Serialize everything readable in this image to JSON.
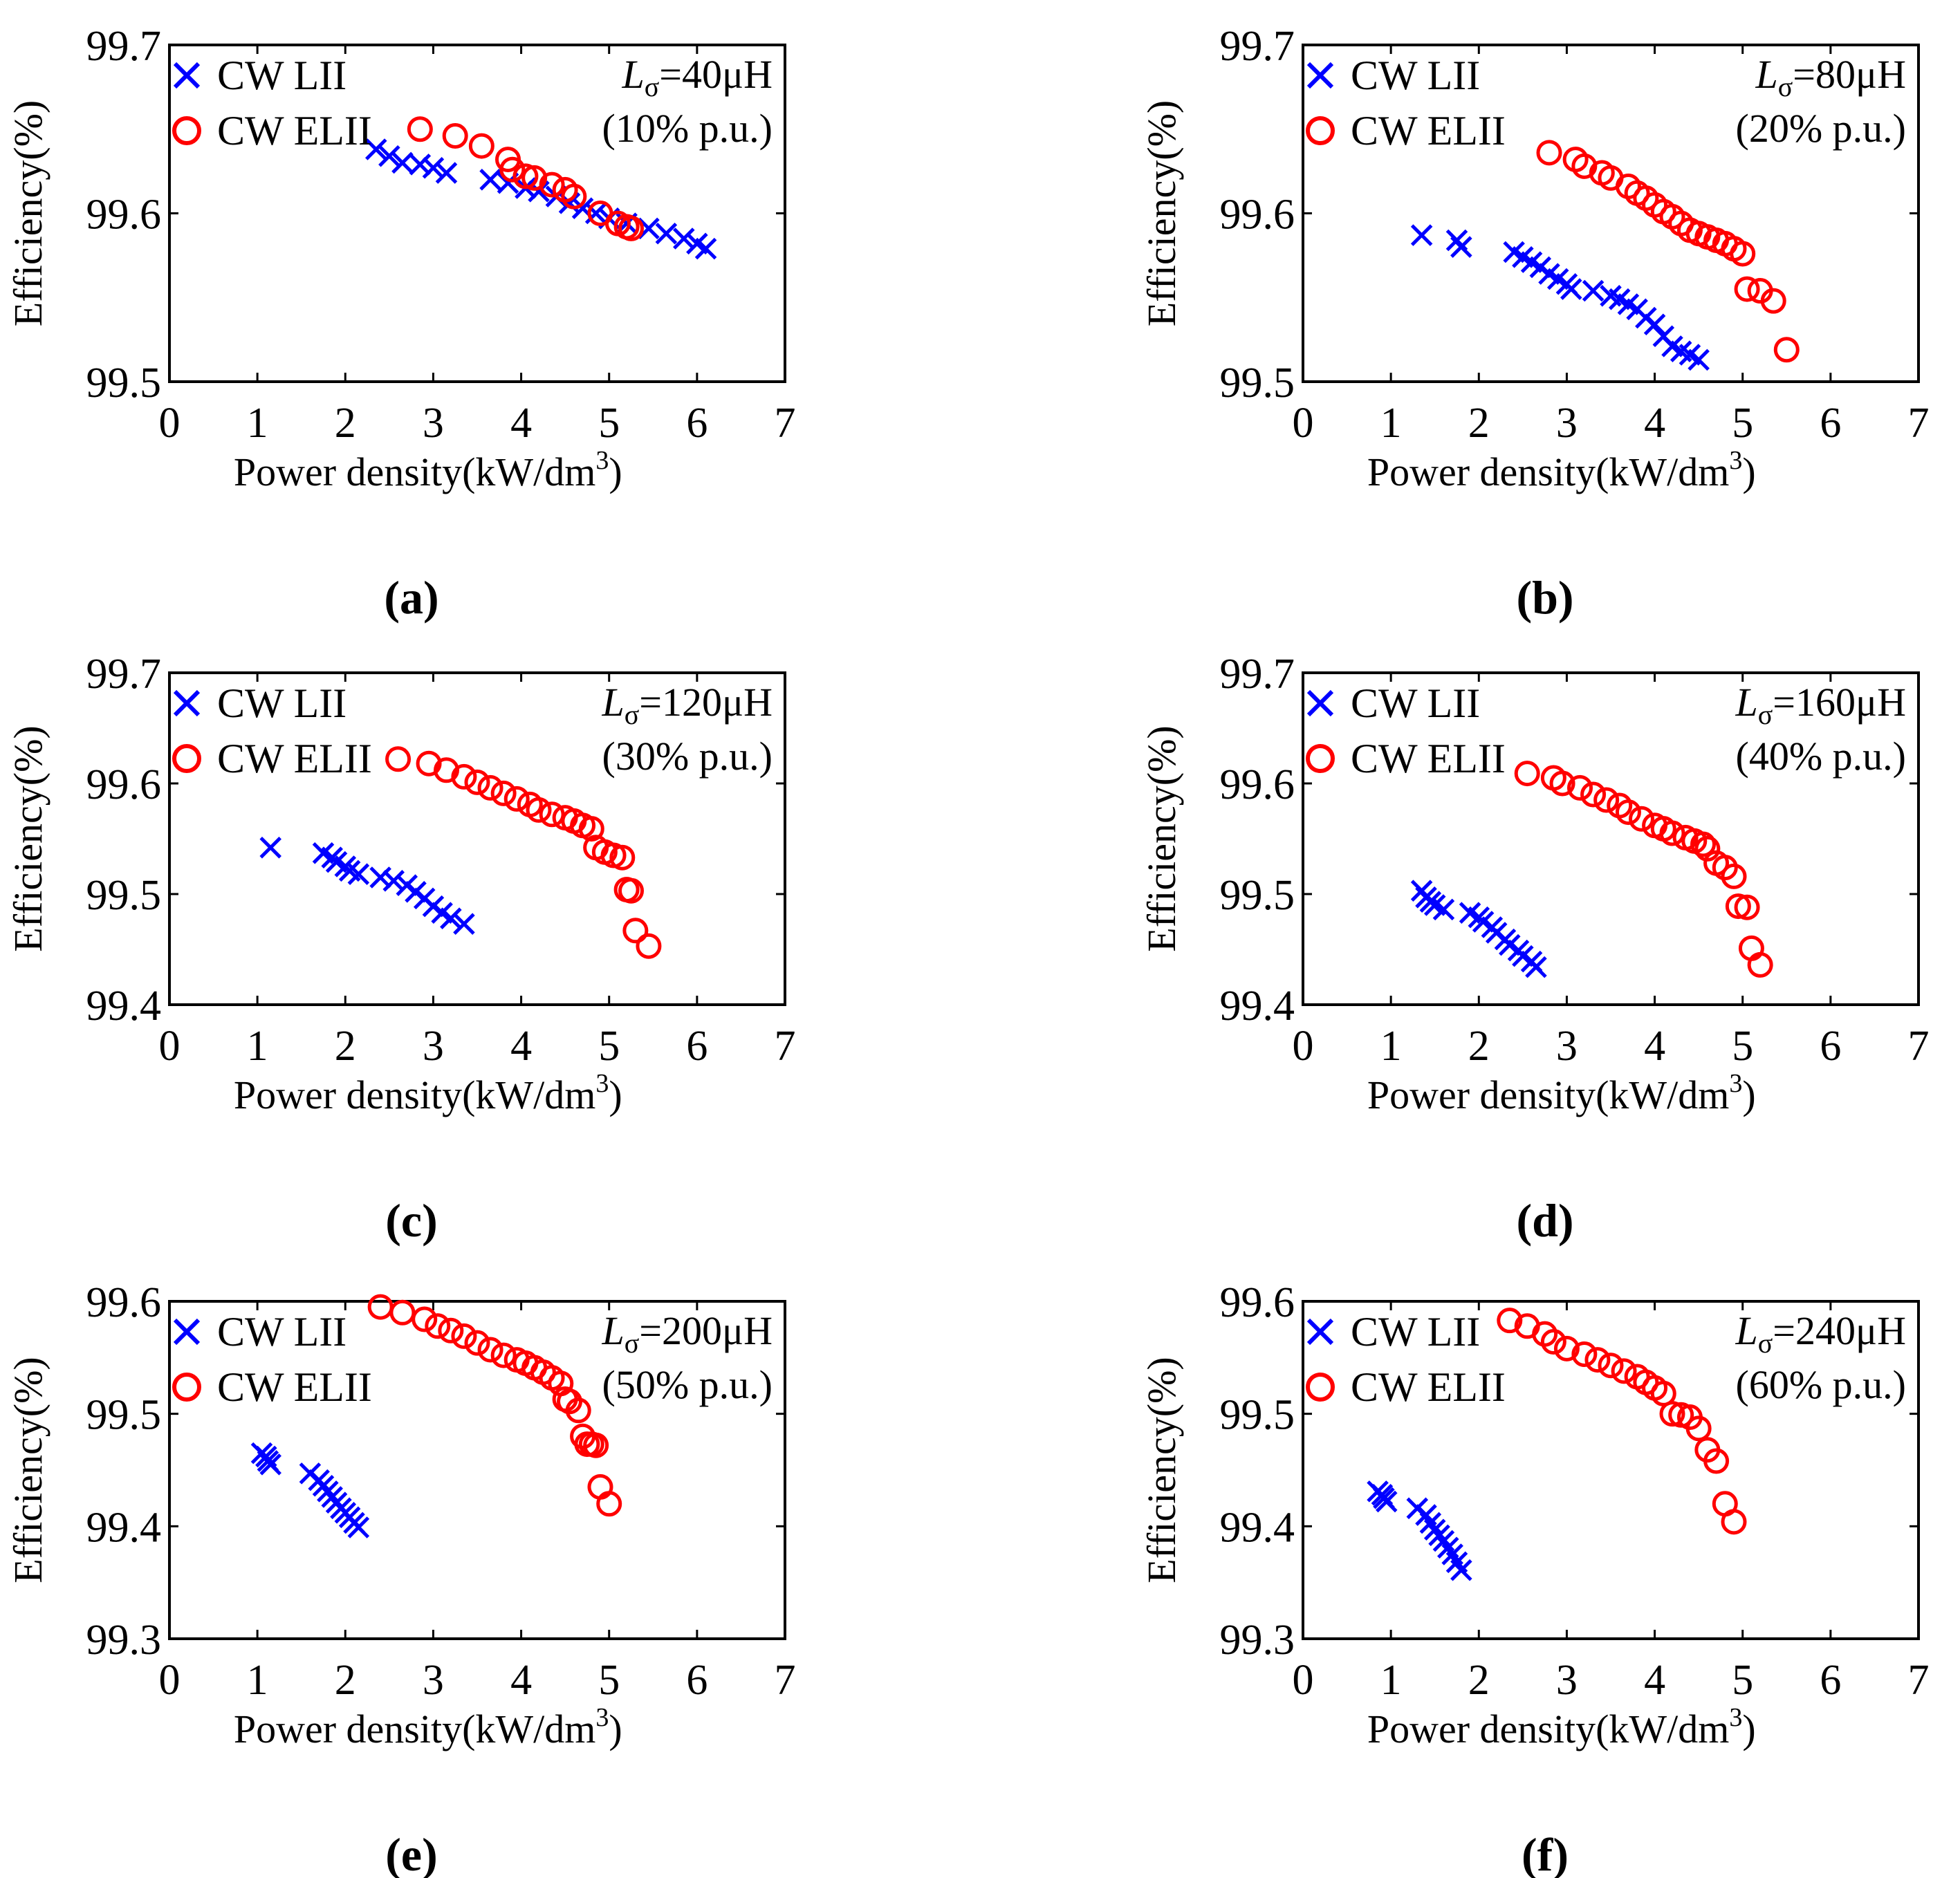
{
  "colors": {
    "series_lii": "#0000ff",
    "series_elii": "#ff0000",
    "axis": "#000000"
  },
  "chart_data": [
    {
      "id": "a",
      "caption": "(a)",
      "type": "scatter",
      "xlabel": "Power density(kW/dm",
      "xlabel_sup": "3",
      "xlabel_end": ")",
      "ylabel": "Efficiency(%)",
      "xlim": [
        0,
        7
      ],
      "ylim": [
        99.5,
        99.7
      ],
      "xticks": [
        "0",
        "1",
        "2",
        "3",
        "4",
        "5",
        "6",
        "7"
      ],
      "yticks": [
        "99.5",
        "99.6",
        "99.7"
      ],
      "annotation": {
        "symbol": "L",
        "subscript": "σ",
        "value": "=40μH",
        "pu": "(10% p.u.)"
      },
      "legend_position": "top-left",
      "series": [
        {
          "name": "CW LII",
          "marker": "x",
          "x": [
            2.35,
            2.5,
            2.65,
            2.85,
            3.0,
            3.15,
            3.65,
            3.85,
            4.05,
            4.2,
            4.4,
            4.55,
            4.7,
            4.85,
            5.0,
            5.2,
            5.45,
            5.65,
            5.85,
            6.0,
            6.1
          ],
          "y": [
            99.638,
            99.634,
            99.63,
            99.629,
            99.627,
            99.624,
            99.62,
            99.618,
            99.615,
            99.613,
            99.61,
            99.606,
            99.603,
            99.6,
            99.597,
            99.594,
            99.591,
            99.588,
            99.585,
            99.582,
            99.579
          ]
        },
        {
          "name": "CW ELII",
          "marker": "o",
          "x": [
            2.85,
            3.25,
            3.55,
            3.85,
            3.9,
            4.05,
            4.15,
            4.35,
            4.5,
            4.6,
            4.9,
            5.1,
            5.2,
            5.25
          ],
          "y": [
            99.65,
            99.646,
            99.64,
            99.632,
            99.626,
            99.622,
            99.621,
            99.617,
            99.614,
            99.61,
            99.6,
            99.594,
            99.592,
            99.591
          ]
        }
      ]
    },
    {
      "id": "b",
      "caption": "(b)",
      "type": "scatter",
      "xlabel": "Power density(kW/dm",
      "xlabel_sup": "3",
      "xlabel_end": ")",
      "ylabel": "Efficiency(%)",
      "xlim": [
        0,
        7
      ],
      "ylim": [
        99.5,
        99.7
      ],
      "xticks": [
        "0",
        "1",
        "2",
        "3",
        "4",
        "5",
        "6",
        "7"
      ],
      "yticks": [
        "99.5",
        "99.6",
        "99.7"
      ],
      "annotation": {
        "symbol": "L",
        "subscript": "σ",
        "value": "=80μH",
        "pu": "(20% p.u.)"
      },
      "legend_position": "top-left",
      "series": [
        {
          "name": "CW LII",
          "marker": "x",
          "x": [
            1.35,
            1.75,
            1.8,
            2.4,
            2.5,
            2.6,
            2.7,
            2.8,
            2.9,
            3.0,
            3.05,
            3.3,
            3.5,
            3.6,
            3.7,
            3.8,
            3.9,
            4.0,
            4.1,
            4.2,
            4.3,
            4.4,
            4.5
          ],
          "y": [
            99.587,
            99.584,
            99.58,
            99.577,
            99.574,
            99.571,
            99.568,
            99.564,
            99.561,
            99.558,
            99.555,
            99.554,
            99.551,
            99.549,
            99.546,
            99.543,
            99.538,
            99.534,
            99.527,
            99.521,
            99.518,
            99.516,
            99.513
          ]
        },
        {
          "name": "CW ELII",
          "marker": "o",
          "x": [
            2.8,
            3.1,
            3.2,
            3.4,
            3.5,
            3.7,
            3.8,
            3.9,
            4.0,
            4.1,
            4.2,
            4.3,
            4.4,
            4.5,
            4.6,
            4.7,
            4.8,
            4.9,
            5.0,
            5.05,
            5.2,
            5.35,
            5.5
          ],
          "y": [
            99.636,
            99.632,
            99.628,
            99.624,
            99.621,
            99.616,
            99.612,
            99.609,
            99.605,
            99.601,
            99.598,
            99.594,
            99.59,
            99.588,
            99.586,
            99.584,
            99.582,
            99.579,
            99.576,
            99.555,
            99.554,
            99.548,
            99.519
          ]
        }
      ]
    },
    {
      "id": "c",
      "caption": "(c)",
      "type": "scatter",
      "xlabel": "Power density(kW/dm",
      "xlabel_sup": "3",
      "xlabel_end": ")",
      "ylabel": "Efficiency(%)",
      "xlim": [
        0,
        7
      ],
      "ylim": [
        99.4,
        99.7
      ],
      "xticks": [
        "0",
        "1",
        "2",
        "3",
        "4",
        "5",
        "6",
        "7"
      ],
      "yticks": [
        "99.4",
        "99.5",
        "99.6",
        "99.7"
      ],
      "annotation": {
        "symbol": "L",
        "subscript": "σ",
        "value": "=120μH",
        "pu": "(30% p.u.)"
      },
      "legend_position": "top-left",
      "series": [
        {
          "name": "CW LII",
          "marker": "x",
          "x": [
            1.15,
            1.75,
            1.85,
            1.9,
            2.0,
            2.05,
            2.15,
            2.4,
            2.55,
            2.7,
            2.8,
            2.9,
            3.0,
            3.1,
            3.2,
            3.35
          ],
          "y": [
            99.542,
            99.537,
            99.533,
            99.529,
            99.525,
            99.521,
            99.518,
            99.515,
            99.512,
            99.508,
            99.502,
            99.496,
            99.489,
            99.483,
            99.478,
            99.473
          ]
        },
        {
          "name": "CW ELII",
          "marker": "o",
          "x": [
            2.6,
            2.95,
            3.15,
            3.35,
            3.5,
            3.65,
            3.8,
            3.95,
            4.1,
            4.2,
            4.35,
            4.5,
            4.6,
            4.7,
            4.8,
            4.85,
            4.95,
            5.05,
            5.15,
            5.2,
            5.25,
            5.3,
            5.45
          ],
          "y": [
            99.622,
            99.618,
            99.612,
            99.606,
            99.601,
            99.596,
            99.591,
            99.586,
            99.581,
            99.576,
            99.572,
            99.569,
            99.566,
            99.562,
            99.559,
            99.542,
            99.538,
            99.535,
            99.533,
            99.504,
            99.503,
            99.467,
            99.453
          ]
        }
      ]
    },
    {
      "id": "d",
      "caption": "(d)",
      "type": "scatter",
      "xlabel": "Power density(kW/dm",
      "xlabel_sup": "3",
      "xlabel_end": ")",
      "ylabel": "Efficiency(%)",
      "xlim": [
        0,
        7
      ],
      "ylim": [
        99.4,
        99.7
      ],
      "xticks": [
        "0",
        "1",
        "2",
        "3",
        "4",
        "5",
        "6",
        "7"
      ],
      "yticks": [
        "99.4",
        "99.5",
        "99.6",
        "99.7"
      ],
      "annotation": {
        "symbol": "L",
        "subscript": "σ",
        "value": "=160μH",
        "pu": "(40% p.u.)"
      },
      "legend_position": "top-left",
      "series": [
        {
          "name": "CW LII",
          "marker": "x",
          "x": [
            1.35,
            1.4,
            1.45,
            1.5,
            1.6,
            1.9,
            2.0,
            2.05,
            2.15,
            2.2,
            2.3,
            2.35,
            2.45,
            2.5,
            2.6,
            2.65
          ],
          "y": [
            99.503,
            99.497,
            99.493,
            99.49,
            99.486,
            99.483,
            99.479,
            99.475,
            99.47,
            99.465,
            99.459,
            99.454,
            99.449,
            99.444,
            99.439,
            99.434
          ]
        },
        {
          "name": "CW ELII",
          "marker": "o",
          "x": [
            2.55,
            2.85,
            2.95,
            3.15,
            3.3,
            3.45,
            3.6,
            3.7,
            3.85,
            4.0,
            4.1,
            4.2,
            4.35,
            4.45,
            4.55,
            4.6,
            4.7,
            4.8,
            4.9,
            4.95,
            5.05,
            5.1,
            5.2
          ],
          "y": [
            99.609,
            99.605,
            99.6,
            99.596,
            99.59,
            99.585,
            99.58,
            99.574,
            99.568,
            99.562,
            99.559,
            99.555,
            99.551,
            99.548,
            99.545,
            99.541,
            99.528,
            99.524,
            99.516,
            99.489,
            99.488,
            99.451,
            99.436
          ]
        }
      ]
    },
    {
      "id": "e",
      "caption": "(e)",
      "type": "scatter",
      "xlabel": "Power density(kW/dm",
      "xlabel_sup": "3",
      "xlabel_end": ")",
      "ylabel": "Efficiency(%)",
      "xlim": [
        0,
        7
      ],
      "ylim": [
        99.3,
        99.6
      ],
      "xticks": [
        "0",
        "1",
        "2",
        "3",
        "4",
        "5",
        "6",
        "7"
      ],
      "yticks": [
        "99.3",
        "99.4",
        "99.5",
        "99.6"
      ],
      "annotation": {
        "symbol": "L",
        "subscript": "σ",
        "value": "=200μH",
        "pu": "(50% p.u.)"
      },
      "legend_position": "top-left",
      "series": [
        {
          "name": "CW LII",
          "marker": "x",
          "x": [
            1.05,
            1.1,
            1.12,
            1.15,
            1.6,
            1.7,
            1.75,
            1.8,
            1.85,
            1.9,
            1.95,
            2.0,
            2.05,
            2.1,
            2.15
          ],
          "y": [
            99.465,
            99.462,
            99.458,
            99.455,
            99.447,
            99.441,
            99.436,
            99.431,
            99.426,
            99.421,
            99.416,
            99.412,
            99.408,
            99.403,
            99.399
          ]
        },
        {
          "name": "CW ELII",
          "marker": "o",
          "x": [
            2.4,
            2.65,
            2.9,
            3.05,
            3.2,
            3.35,
            3.5,
            3.65,
            3.8,
            3.95,
            4.05,
            4.15,
            4.25,
            4.35,
            4.45,
            4.5,
            4.55,
            4.65,
            4.7,
            4.75,
            4.8,
            4.85,
            4.9,
            5.0
          ],
          "y": [
            99.595,
            99.59,
            99.584,
            99.578,
            99.574,
            99.569,
            99.563,
            99.557,
            99.552,
            99.548,
            99.545,
            99.541,
            99.537,
            99.532,
            99.527,
            99.513,
            99.511,
            99.503,
            99.48,
            99.473,
            99.473,
            99.472,
            99.435,
            99.42
          ]
        }
      ]
    },
    {
      "id": "f",
      "caption": "(f)",
      "type": "scatter",
      "xlabel": "Power density(kW/dm",
      "xlabel_sup": "3",
      "xlabel_end": ")",
      "ylabel": "Efficiency(%)",
      "xlim": [
        0,
        7
      ],
      "ylim": [
        99.3,
        99.6
      ],
      "xticks": [
        "0",
        "1",
        "2",
        "3",
        "4",
        "5",
        "6",
        "7"
      ],
      "yticks": [
        "99.3",
        "99.4",
        "99.5",
        "99.6"
      ],
      "annotation": {
        "symbol": "L",
        "subscript": "σ",
        "value": "=240μH",
        "pu": "(60% p.u.)"
      },
      "legend_position": "top-left",
      "series": [
        {
          "name": "CW LII",
          "marker": "x",
          "x": [
            0.85,
            0.9,
            0.92,
            0.95,
            1.3,
            1.4,
            1.45,
            1.5,
            1.55,
            1.6,
            1.65,
            1.7,
            1.75,
            1.8
          ],
          "y": [
            99.431,
            99.428,
            99.425,
            99.422,
            99.416,
            99.41,
            99.403,
            99.397,
            99.392,
            99.387,
            99.381,
            99.375,
            99.368,
            99.361
          ]
        },
        {
          "name": "CW ELII",
          "marker": "o",
          "x": [
            2.35,
            2.55,
            2.75,
            2.85,
            3.0,
            3.2,
            3.35,
            3.5,
            3.65,
            3.8,
            3.9,
            4.0,
            4.1,
            4.2,
            4.3,
            4.4,
            4.5,
            4.6,
            4.7,
            4.8,
            4.9
          ],
          "y": [
            99.583,
            99.578,
            99.571,
            99.564,
            99.558,
            99.553,
            99.548,
            99.543,
            99.538,
            99.533,
            99.528,
            99.523,
            99.518,
            99.5,
            99.499,
            99.497,
            99.487,
            99.468,
            99.458,
            99.42,
            99.404
          ]
        }
      ]
    }
  ]
}
